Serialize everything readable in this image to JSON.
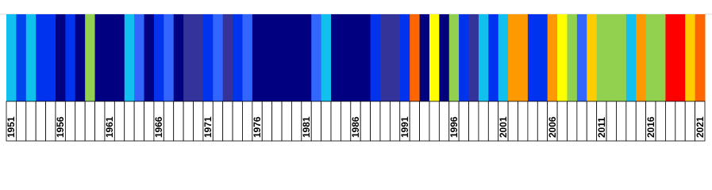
{
  "chart_data": {
    "type": "stripes",
    "categories": [
      "1951",
      null,
      null,
      null,
      null,
      "1956",
      null,
      null,
      null,
      null,
      "1961",
      null,
      null,
      null,
      null,
      "1966",
      null,
      null,
      null,
      null,
      "1971",
      null,
      null,
      null,
      null,
      "1976",
      null,
      null,
      null,
      null,
      "1981",
      null,
      null,
      null,
      null,
      "1986",
      null,
      null,
      null,
      null,
      "1991",
      null,
      null,
      null,
      null,
      "1996",
      null,
      null,
      null,
      null,
      "2001",
      null,
      null,
      null,
      null,
      "2006",
      null,
      null,
      null,
      null,
      "2011",
      null,
      null,
      null,
      null,
      "2016",
      null,
      null,
      null,
      null,
      "2021"
    ],
    "colors": [
      "#12c0f0",
      "#0044ee",
      "#12c0f0",
      "#0033ee",
      "#0033ee",
      "#000080",
      "#0033ee",
      "#000080",
      "#92d050",
      "#000080",
      "#000080",
      "#000080",
      "#12c0f0",
      "#3366ff",
      "#000080",
      "#0033ee",
      "#3366ff",
      "#000080",
      "#333399",
      "#333399",
      "#0033ee",
      "#3366ff",
      "#333399",
      "#0033ee",
      "#3366ff",
      "#000080",
      "#000080",
      "#000080",
      "#000080",
      "#000080",
      "#000080",
      "#3366ff",
      "#12c0f0",
      "#000080",
      "#000080",
      "#000080",
      "#000080",
      "#0033ee",
      "#333399",
      "#333399",
      "#0033ee",
      "#ff6600",
      "#000080",
      "#ffff00",
      "#000080",
      "#92d050",
      "#0033ee",
      "#333399",
      "#12c0f0",
      "#0033ee",
      "#12c0f0",
      "#ff9900",
      "#ff9900",
      "#0033ee",
      "#0033ee",
      "#ff9900",
      "#ffff00",
      "#92d050",
      "#3366ff",
      "#ffcc00",
      "#92d050",
      "#92d050",
      "#92d050",
      "#12c0f0",
      "#ff9900",
      "#92d050",
      "#92d050",
      "#ff0000",
      "#ff0000",
      "#ffcc00",
      "#ff6600"
    ]
  }
}
